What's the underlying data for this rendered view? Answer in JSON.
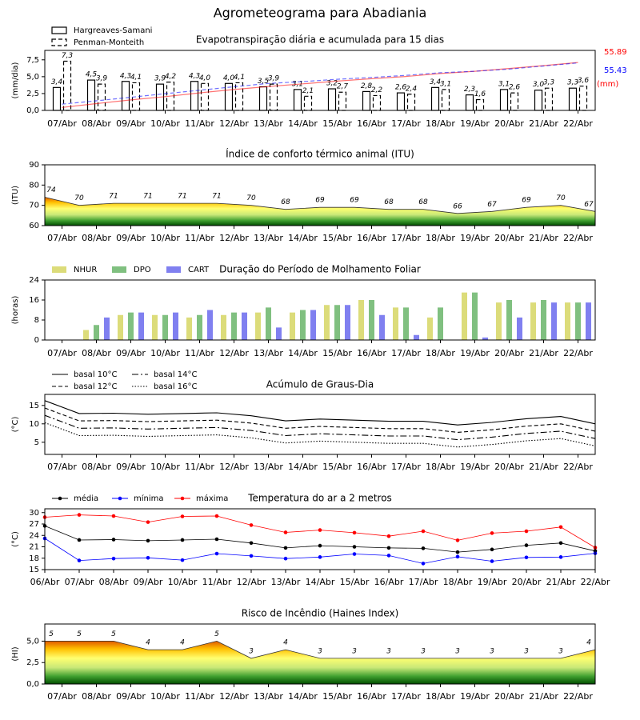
{
  "title": "Agrometeograma para Abadiania",
  "chart_data": [
    {
      "type": "bar",
      "title": "Evapotranspiração diária e acumulada para 15 dias",
      "ylabel": "(mm/dia)",
      "y2label": "(mm)",
      "categories": [
        "07/Abr",
        "08/Abr",
        "09/Abr",
        "10/Abr",
        "11/Abr",
        "12/Abr",
        "13/Abr",
        "14/Abr",
        "15/Abr",
        "16/Abr",
        "17/Abr",
        "18/Abr",
        "19/Abr",
        "20/Abr",
        "21/Abr",
        "22/Abr"
      ],
      "ylim": [
        0,
        8.9
      ],
      "yticks": [
        {
          "value": 0,
          "label": "0,0"
        },
        {
          "value": 2.5,
          "label": "2,5"
        },
        {
          "value": 5,
          "label": "5,0"
        },
        {
          "value": 7.5,
          "label": "7,5"
        }
      ],
      "y2lim": [
        0,
        70
      ],
      "legend": "upper left",
      "series": [
        {
          "name": "Hargreaves-Samani",
          "color": "#000000",
          "linestyle": "solid",
          "values": [
            3.4,
            4.5,
            4.3,
            3.9,
            4.3,
            4.0,
            3.5,
            3.1,
            3.2,
            2.8,
            2.6,
            3.4,
            2.3,
            3.1,
            3.0,
            3.3
          ],
          "value_labels": [
            "3,4",
            "4,5",
            "4,3",
            "3,9",
            "4,3",
            "4,0",
            "3,5",
            "3,1",
            "3,2",
            "2,8",
            "2,6",
            "3,4",
            "2,3",
            "3,1",
            "3,0",
            "3,3"
          ]
        },
        {
          "name": "Penman-Monteith",
          "color": "#000000",
          "linestyle": "dashed",
          "values": [
            7.3,
            3.9,
            4.1,
            4.2,
            4.0,
            4.1,
            3.9,
            2.1,
            2.7,
            2.2,
            2.4,
            3.1,
            1.6,
            2.6,
            3.3,
            3.6
          ],
          "value_labels": [
            "7,3",
            "3,9",
            "4,1",
            "4,2",
            "4,0",
            "4,1",
            "3,9",
            "2,1",
            "2,7",
            "2,2",
            "2,4",
            "3,1",
            "1,6",
            "2,6",
            "3,3",
            "3,6"
          ]
        },
        {
          "type": "line",
          "axis": "y2",
          "color": "#ff0000",
          "linestyle": "solid",
          "values": [
            3.5,
            7.9,
            12.2,
            16.1,
            20.4,
            24.4,
            27.9,
            31.0,
            34.2,
            37.0,
            39.6,
            43.0,
            45.6,
            48.9,
            52.3,
            55.89
          ]
        },
        {
          "type": "line",
          "axis": "y2",
          "color": "#0000ff",
          "linestyle": "dashed",
          "values": [
            7.3,
            11.2,
            15.3,
            19.5,
            23.5,
            27.6,
            31.5,
            33.6,
            36.3,
            38.5,
            40.9,
            44.0,
            45.6,
            48.2,
            51.8,
            55.43
          ]
        }
      ]
    },
    {
      "type": "area",
      "title": "Índice de conforto térmico animal (ITU)",
      "ylabel": "(ITU)",
      "x": [
        0,
        1,
        2,
        3,
        4,
        5,
        6,
        7,
        8,
        9,
        10,
        11,
        12,
        13,
        14,
        15,
        16
      ],
      "xlim": [
        0,
        16
      ],
      "xticks": [
        {
          "value": 0.5,
          "label": "07/Abr"
        },
        {
          "value": 1.5,
          "label": "08/Abr"
        },
        {
          "value": 2.5,
          "label": "09/Abr"
        },
        {
          "value": 3.5,
          "label": "10/Abr"
        },
        {
          "value": 4.5,
          "label": "11/Abr"
        },
        {
          "value": 5.5,
          "label": "12/Abr"
        },
        {
          "value": 6.5,
          "label": "13/Abr"
        },
        {
          "value": 7.5,
          "label": "14/Abr"
        },
        {
          "value": 8.5,
          "label": "15/Abr"
        },
        {
          "value": 9.5,
          "label": "16/Abr"
        },
        {
          "value": 10.5,
          "label": "17/Abr"
        },
        {
          "value": 11.5,
          "label": "18/Abr"
        },
        {
          "value": 12.5,
          "label": "19/Abr"
        },
        {
          "value": 13.5,
          "label": "20/Abr"
        },
        {
          "value": 14.5,
          "label": "21/Abr"
        },
        {
          "value": 15.5,
          "label": "22/Abr"
        }
      ],
      "ylim": [
        60,
        90
      ],
      "yticks": [
        60,
        70,
        80,
        90
      ],
      "color": "#333333",
      "data_labels": true,
      "values": [
        74,
        70,
        71,
        71,
        71,
        71,
        70,
        68,
        69,
        69,
        68,
        68,
        66,
        67,
        69,
        70,
        67
      ]
    },
    {
      "type": "bar",
      "title": "Duração do Período de Molhamento Foliar",
      "ylabel": "(horas)",
      "categories": [
        "07/Abr",
        "08/Abr",
        "09/Abr",
        "10/Abr",
        "11/Abr",
        "12/Abr",
        "13/Abr",
        "14/Abr",
        "15/Abr",
        "16/Abr",
        "17/Abr",
        "18/Abr",
        "19/Abr",
        "20/Abr",
        "21/Abr",
        "22/Abr"
      ],
      "ylim": [
        0,
        24
      ],
      "yticks": [
        0,
        8,
        16,
        24
      ],
      "legend": "upper left",
      "series": [
        {
          "name": "NHUR",
          "color": "#dcdc7a",
          "values": [
            0,
            4,
            10,
            10,
            9,
            10,
            11,
            11,
            14,
            16,
            13,
            9,
            19,
            15,
            15,
            15
          ]
        },
        {
          "name": "DPO",
          "color": "#80c080",
          "values": [
            0,
            6,
            11,
            10,
            10,
            11,
            13,
            12,
            14,
            16,
            13,
            13,
            19,
            16,
            16,
            15
          ]
        },
        {
          "name": "CART",
          "color": "#8080f0",
          "values": [
            0,
            9,
            11,
            11,
            12,
            11,
            5,
            12,
            14,
            10,
            2,
            0,
            1,
            9,
            15,
            15
          ]
        }
      ]
    },
    {
      "type": "line",
      "title": "Acúmulo de Graus-Dia",
      "ylabel": "(°C)",
      "x": [
        0,
        1,
        2,
        3,
        4,
        5,
        6,
        7,
        8,
        9,
        10,
        11,
        12,
        13,
        14,
        15,
        16
      ],
      "xlim": [
        0,
        16
      ],
      "xticks": [
        {
          "value": 0.5,
          "label": "07/Abr"
        },
        {
          "value": 1.5,
          "label": "08/Abr"
        },
        {
          "value": 2.5,
          "label": "09/Abr"
        },
        {
          "value": 3.5,
          "label": "10/Abr"
        },
        {
          "value": 4.5,
          "label": "11/Abr"
        },
        {
          "value": 5.5,
          "label": "12/Abr"
        },
        {
          "value": 6.5,
          "label": "13/Abr"
        },
        {
          "value": 7.5,
          "label": "14/Abr"
        },
        {
          "value": 8.5,
          "label": "15/Abr"
        },
        {
          "value": 9.5,
          "label": "16/Abr"
        },
        {
          "value": 10.5,
          "label": "17/Abr"
        },
        {
          "value": 11.5,
          "label": "18/Abr"
        },
        {
          "value": 12.5,
          "label": "19/Abr"
        },
        {
          "value": 13.5,
          "label": "20/Abr"
        },
        {
          "value": 14.5,
          "label": "21/Abr"
        },
        {
          "value": 15.5,
          "label": "22/Abr"
        }
      ],
      "ylim": [
        1.7,
        18
      ],
      "yticks": [
        5,
        10,
        15
      ],
      "legend": "upper left",
      "series": [
        {
          "name": "basal 10°C",
          "color": "#000000",
          "linestyle": "solid",
          "values": [
            16.3,
            12.8,
            12.9,
            12.6,
            12.8,
            13.0,
            12.2,
            10.8,
            11.3,
            11.0,
            10.7,
            10.7,
            9.7,
            10.4,
            11.4,
            12.0,
            10.0
          ]
        },
        {
          "name": "basal 12°C",
          "color": "#000000",
          "linestyle": "dashed",
          "values": [
            14.3,
            10.8,
            10.9,
            10.6,
            10.8,
            11.0,
            10.2,
            8.8,
            9.3,
            9.0,
            8.7,
            8.7,
            7.7,
            8.4,
            9.4,
            10.0,
            8.0
          ]
        },
        {
          "name": "basal 14°C",
          "color": "#000000",
          "linestyle": "dashdot",
          "values": [
            12.3,
            8.8,
            8.9,
            8.6,
            8.8,
            9.0,
            8.2,
            6.8,
            7.3,
            7.0,
            6.7,
            6.7,
            5.7,
            6.4,
            7.4,
            8.0,
            6.0
          ]
        },
        {
          "name": "basal 16°C",
          "color": "#000000",
          "linestyle": "dotted",
          "values": [
            10.3,
            6.8,
            6.9,
            6.6,
            6.8,
            7.0,
            6.2,
            4.8,
            5.3,
            5.0,
            4.7,
            4.7,
            3.7,
            4.4,
            5.4,
            6.0,
            4.0
          ]
        }
      ]
    },
    {
      "type": "line",
      "title": "Temperatura do ar a 2 metros",
      "ylabel": "(°C)",
      "x": [
        0,
        1,
        2,
        3,
        4,
        5,
        6,
        7,
        8,
        9,
        10,
        11,
        12,
        13,
        14,
        15,
        16
      ],
      "xlim": [
        0,
        16
      ],
      "xticks": [
        {
          "value": 0,
          "label": "06/Abr"
        },
        {
          "value": 1,
          "label": "07/Abr"
        },
        {
          "value": 2,
          "label": "08/Abr"
        },
        {
          "value": 3,
          "label": "09/Abr"
        },
        {
          "value": 4,
          "label": "10/Abr"
        },
        {
          "value": 5,
          "label": "11/Abr"
        },
        {
          "value": 6,
          "label": "12/Abr"
        },
        {
          "value": 7,
          "label": "13/Abr"
        },
        {
          "value": 8,
          "label": "14/Abr"
        },
        {
          "value": 9,
          "label": "15/Abr"
        },
        {
          "value": 10,
          "label": "16/Abr"
        },
        {
          "value": 11,
          "label": "17/Abr"
        },
        {
          "value": 12,
          "label": "18/Abr"
        },
        {
          "value": 13,
          "label": "19/Abr"
        },
        {
          "value": 14,
          "label": "20/Abr"
        },
        {
          "value": 15,
          "label": "21/Abr"
        },
        {
          "value": 16,
          "label": "22/Abr"
        }
      ],
      "ylim": [
        15,
        31
      ],
      "yticks": [
        15,
        18,
        21,
        24,
        27,
        30
      ],
      "legend": "upper left",
      "series": [
        {
          "name": "média",
          "color": "#000000",
          "linestyle": "solid",
          "marker": "o",
          "values": [
            26.5,
            22.8,
            22.9,
            22.6,
            22.8,
            23.0,
            22.0,
            20.7,
            21.3,
            21.0,
            20.7,
            20.6,
            19.6,
            20.3,
            21.4,
            22.0,
            19.9
          ]
        },
        {
          "name": "mínima",
          "color": "#0000ff",
          "linestyle": "solid",
          "marker": "o",
          "values": [
            23.2,
            17.4,
            17.9,
            18.1,
            17.5,
            19.2,
            18.6,
            17.9,
            18.3,
            19.1,
            18.7,
            16.6,
            18.4,
            17.2,
            18.2,
            18.3,
            19.3
          ]
        },
        {
          "name": "máxima",
          "color": "#ff0000",
          "linestyle": "solid",
          "marker": "o",
          "values": [
            28.8,
            29.4,
            29.1,
            27.5,
            29.0,
            29.1,
            26.7,
            24.8,
            25.4,
            24.7,
            23.8,
            25.1,
            22.7,
            24.6,
            25.1,
            26.2,
            20.8
          ]
        }
      ]
    },
    {
      "type": "area",
      "title": "Risco de Incêndio (Haines Index)",
      "ylabel": "(HI)",
      "x": [
        0,
        1,
        2,
        3,
        4,
        5,
        6,
        7,
        8,
        9,
        10,
        11,
        12,
        13,
        14,
        15,
        16
      ],
      "xlim": [
        0,
        16
      ],
      "xticks": [
        {
          "value": 0.5,
          "label": "07/Abr"
        },
        {
          "value": 1.5,
          "label": "08/Abr"
        },
        {
          "value": 2.5,
          "label": "09/Abr"
        },
        {
          "value": 3.5,
          "label": "10/Abr"
        },
        {
          "value": 4.5,
          "label": "11/Abr"
        },
        {
          "value": 5.5,
          "label": "12/Abr"
        },
        {
          "value": 6.5,
          "label": "13/Abr"
        },
        {
          "value": 7.5,
          "label": "14/Abr"
        },
        {
          "value": 8.5,
          "label": "15/Abr"
        },
        {
          "value": 9.5,
          "label": "16/Abr"
        },
        {
          "value": 10.5,
          "label": "17/Abr"
        },
        {
          "value": 11.5,
          "label": "18/Abr"
        },
        {
          "value": 12.5,
          "label": "19/Abr"
        },
        {
          "value": 13.5,
          "label": "20/Abr"
        },
        {
          "value": 14.5,
          "label": "21/Abr"
        },
        {
          "value": 15.5,
          "label": "22/Abr"
        }
      ],
      "ylim": [
        0,
        7
      ],
      "yticks": [
        {
          "value": 0,
          "label": "0,0"
        },
        {
          "value": 2.5,
          "label": "2,5"
        },
        {
          "value": 5,
          "label": "5,0"
        }
      ],
      "color": "#333333",
      "data_labels": true,
      "values": [
        5,
        5,
        5,
        4,
        4,
        5,
        3,
        4,
        3,
        3,
        3,
        3,
        3,
        3,
        3,
        3,
        4
      ]
    }
  ]
}
